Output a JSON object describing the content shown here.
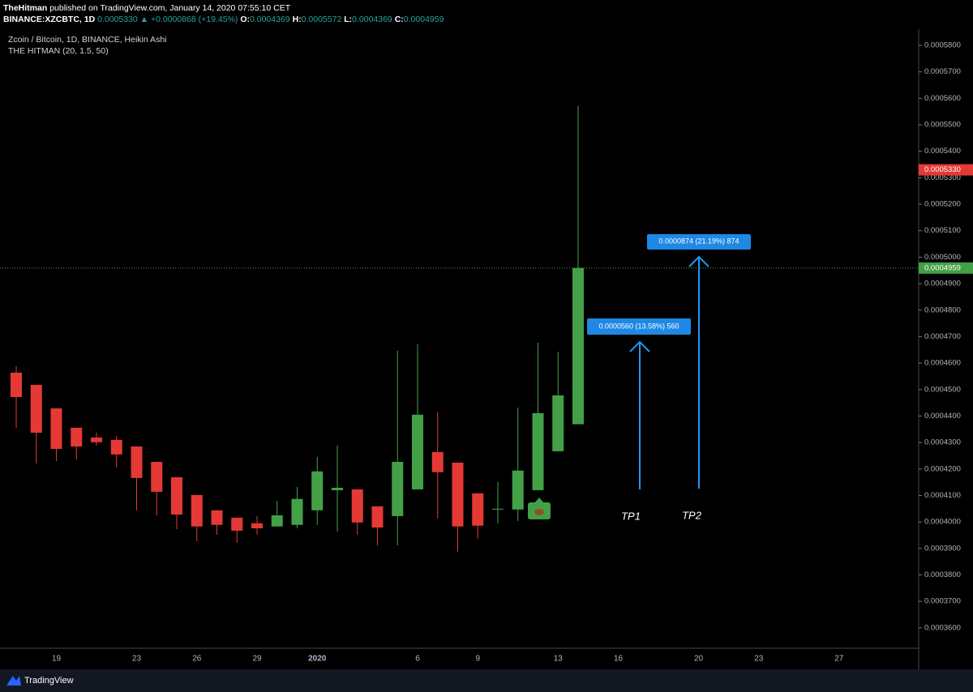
{
  "header": {
    "author": "TheHitman",
    "published": "published on TradingView.com, January 14, 2020 07:55:10 CET",
    "symbol": "BINANCE:XZCBTC, 1D",
    "price": "0.0005330",
    "arrow": "▲",
    "change": "+0.0000868 (+19.45%)",
    "ohlc": [
      {
        "key": "O:",
        "value": "0.0004369"
      },
      {
        "key": "H:",
        "value": "0.0005572"
      },
      {
        "key": "L:",
        "value": "0.0004369"
      },
      {
        "key": "C:",
        "value": "0.0004959"
      }
    ]
  },
  "chart_data": {
    "type": "candlestick",
    "title": "Zcoin / Bitcoin, 1D, BINANCE, Heikin Ashi",
    "subtitle": "THE HITMAN (20, 1.5, 50)",
    "categories": [
      null,
      null,
      "19",
      null,
      null,
      null,
      "23",
      null,
      null,
      "26",
      null,
      null,
      "29",
      null,
      null,
      "2020",
      null,
      null,
      null,
      null,
      "6",
      null,
      null,
      "9",
      null,
      null,
      null,
      "13",
      null,
      null,
      "16",
      null,
      null,
      null,
      "20",
      null,
      null,
      "23",
      null,
      null,
      null,
      "27",
      null,
      null,
      null,
      null
    ],
    "open": [
      0.0004564,
      0.0004518,
      0.0004429,
      0.0004356,
      0.0004319,
      0.000431,
      0.0004285,
      0.0004227,
      0.0004169,
      0.0004102,
      0.0004044,
      0.0004016,
      0.0003995,
      0.0003983,
      0.0003989,
      0.0004044,
      0.000412,
      0.0004123,
      0.0004059,
      0.0004022,
      0.0004123,
      0.0004264,
      0.0004224,
      0.0004108,
      0.0004047,
      0.0004047,
      0.000412,
      0.0004267,
      0.0004369,
      null,
      null,
      null,
      null,
      null,
      null,
      null,
      null,
      null,
      null,
      null,
      null,
      null,
      null,
      null,
      null,
      null
    ],
    "high": [
      0.0004588,
      0.0004518,
      0.0004429,
      0.0004356,
      0.0004337,
      0.0004325,
      0.0004285,
      0.0004227,
      0.0004169,
      0.0004102,
      0.0004044,
      0.0004016,
      0.0004022,
      0.000408,
      0.0004132,
      0.0004246,
      0.0004289,
      0.0004123,
      0.0004059,
      0.0004647,
      0.0004671,
      0.0004414,
      0.0004224,
      0.0004108,
      0.0004151,
      0.0004432,
      0.0004677,
      0.0004643,
      0.0005572,
      null,
      null,
      null,
      null,
      null,
      null,
      null,
      null,
      null,
      null,
      null,
      null,
      null,
      null,
      null,
      null,
      null
    ],
    "low": [
      0.0004356,
      0.0004221,
      0.000423,
      0.0004236,
      0.0004289,
      0.0004206,
      0.0004044,
      0.0004025,
      0.0003973,
      0.0003927,
      0.0003952,
      0.0003921,
      0.0003952,
      0.0003983,
      0.0003976,
      0.0003989,
      0.0003964,
      0.0003952,
      0.0003912,
      0.0003912,
      0.0004123,
      0.0004013,
      0.0003888,
      0.0003937,
      0.0003995,
      0.0004004,
      0.000412,
      0.0004267,
      0.0004369,
      null,
      null,
      null,
      null,
      null,
      null,
      null,
      null,
      null,
      null,
      null,
      null,
      null,
      null,
      null,
      null,
      null
    ],
    "close": [
      0.0004472,
      0.0004337,
      0.0004276,
      0.0004285,
      0.0004301,
      0.0004255,
      0.0004166,
      0.0004114,
      0.0004028,
      0.0003983,
      0.0003989,
      0.0003967,
      0.0003976,
      0.0004025,
      0.0004087,
      0.0004191,
      0.0004129,
      0.0003998,
      0.0003979,
      0.0004227,
      0.0004405,
      0.0004188,
      0.0003983,
      0.0003986,
      0.000405,
      0.0004194,
      0.0004411,
      0.0004478,
      0.0004959,
      null,
      null,
      null,
      null,
      null,
      null,
      null,
      null,
      null,
      null,
      null,
      null,
      null,
      null,
      null,
      null,
      null
    ],
    "up_color": "#43a047",
    "down_color": "#e53935",
    "ylim": [
      0.0003523,
      0.0005849
    ],
    "yticks": [
      {
        "value": 0.00036,
        "label": "0.0003600"
      },
      {
        "value": 0.00037,
        "label": "0.0003700"
      },
      {
        "value": 0.00038,
        "label": "0.0003800"
      },
      {
        "value": 0.00039,
        "label": "0.0003900"
      },
      {
        "value": 0.0004,
        "label": "0.0004000"
      },
      {
        "value": 0.00041,
        "label": "0.0004100"
      },
      {
        "value": 0.00042,
        "label": "0.0004200"
      },
      {
        "value": 0.00043,
        "label": "0.0004300"
      },
      {
        "value": 0.00044,
        "label": "0.0004400"
      },
      {
        "value": 0.00045,
        "label": "0.0004500"
      },
      {
        "value": 0.00046,
        "label": "0.0004600"
      },
      {
        "value": 0.00047,
        "label": "0.0004700"
      },
      {
        "value": 0.00048,
        "label": "0.0004800"
      },
      {
        "value": 0.00049,
        "label": "0.0004900"
      },
      {
        "value": 0.0005,
        "label": "0.0005000"
      },
      {
        "value": 0.00051,
        "label": "0.0005100"
      },
      {
        "value": 0.00052,
        "label": "0.0005200"
      },
      {
        "value": 0.00053,
        "label": "0.0005300"
      },
      {
        "value": 0.00054,
        "label": "0.0005400"
      },
      {
        "value": 0.00055,
        "label": "0.0005500"
      },
      {
        "value": 0.00056,
        "label": "0.0005600"
      },
      {
        "value": 0.00057,
        "label": "0.0005700"
      },
      {
        "value": 0.00058,
        "label": "0.0005800"
      }
    ],
    "price_markers": [
      {
        "value": 0.000533,
        "label": "0.0005330",
        "color": "#e53935",
        "line": false
      },
      {
        "value": 0.0004959,
        "label": "0.0004959",
        "color": "#43a047",
        "line": true
      }
    ],
    "annotations": [
      "0.0000560 (13.58%) 560",
      "0.0000874 (21.19%) 874"
    ],
    "targets": [
      "TP1",
      "TP2"
    ]
  },
  "footer": {
    "brand": "TradingView"
  }
}
